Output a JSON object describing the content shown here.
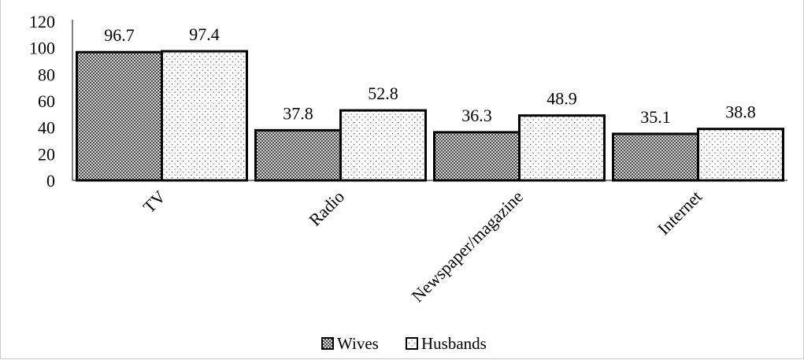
{
  "chart_data": {
    "type": "bar",
    "categories": [
      "TV",
      "Radio",
      "Newspaper/magazine",
      "Internet"
    ],
    "series": [
      {
        "name": "Wives",
        "values": [
          96.7,
          37.8,
          36.3,
          35.1
        ],
        "pattern": "dark-checker"
      },
      {
        "name": "Husbands",
        "values": [
          97.4,
          52.8,
          48.9,
          38.8
        ],
        "pattern": "light-dots"
      }
    ],
    "data_labels": [
      [
        "96.7",
        "37.8",
        "36.3",
        "35.1"
      ],
      [
        "97.4",
        "52.8",
        "48.9",
        "38.8"
      ]
    ],
    "ylim": [
      0,
      120
    ],
    "yticks": [
      "0",
      "20",
      "40",
      "60",
      "80",
      "100",
      "120"
    ],
    "ytick_values": [
      0,
      20,
      40,
      60,
      80,
      100,
      120
    ],
    "grid": false,
    "legend_position": "bottom-center",
    "category_label_rotation": "45deg"
  },
  "colors": {
    "bar_edge": "#000000",
    "wives_fill": "#3a3a3a",
    "husbands_fill": "#ffffff"
  }
}
